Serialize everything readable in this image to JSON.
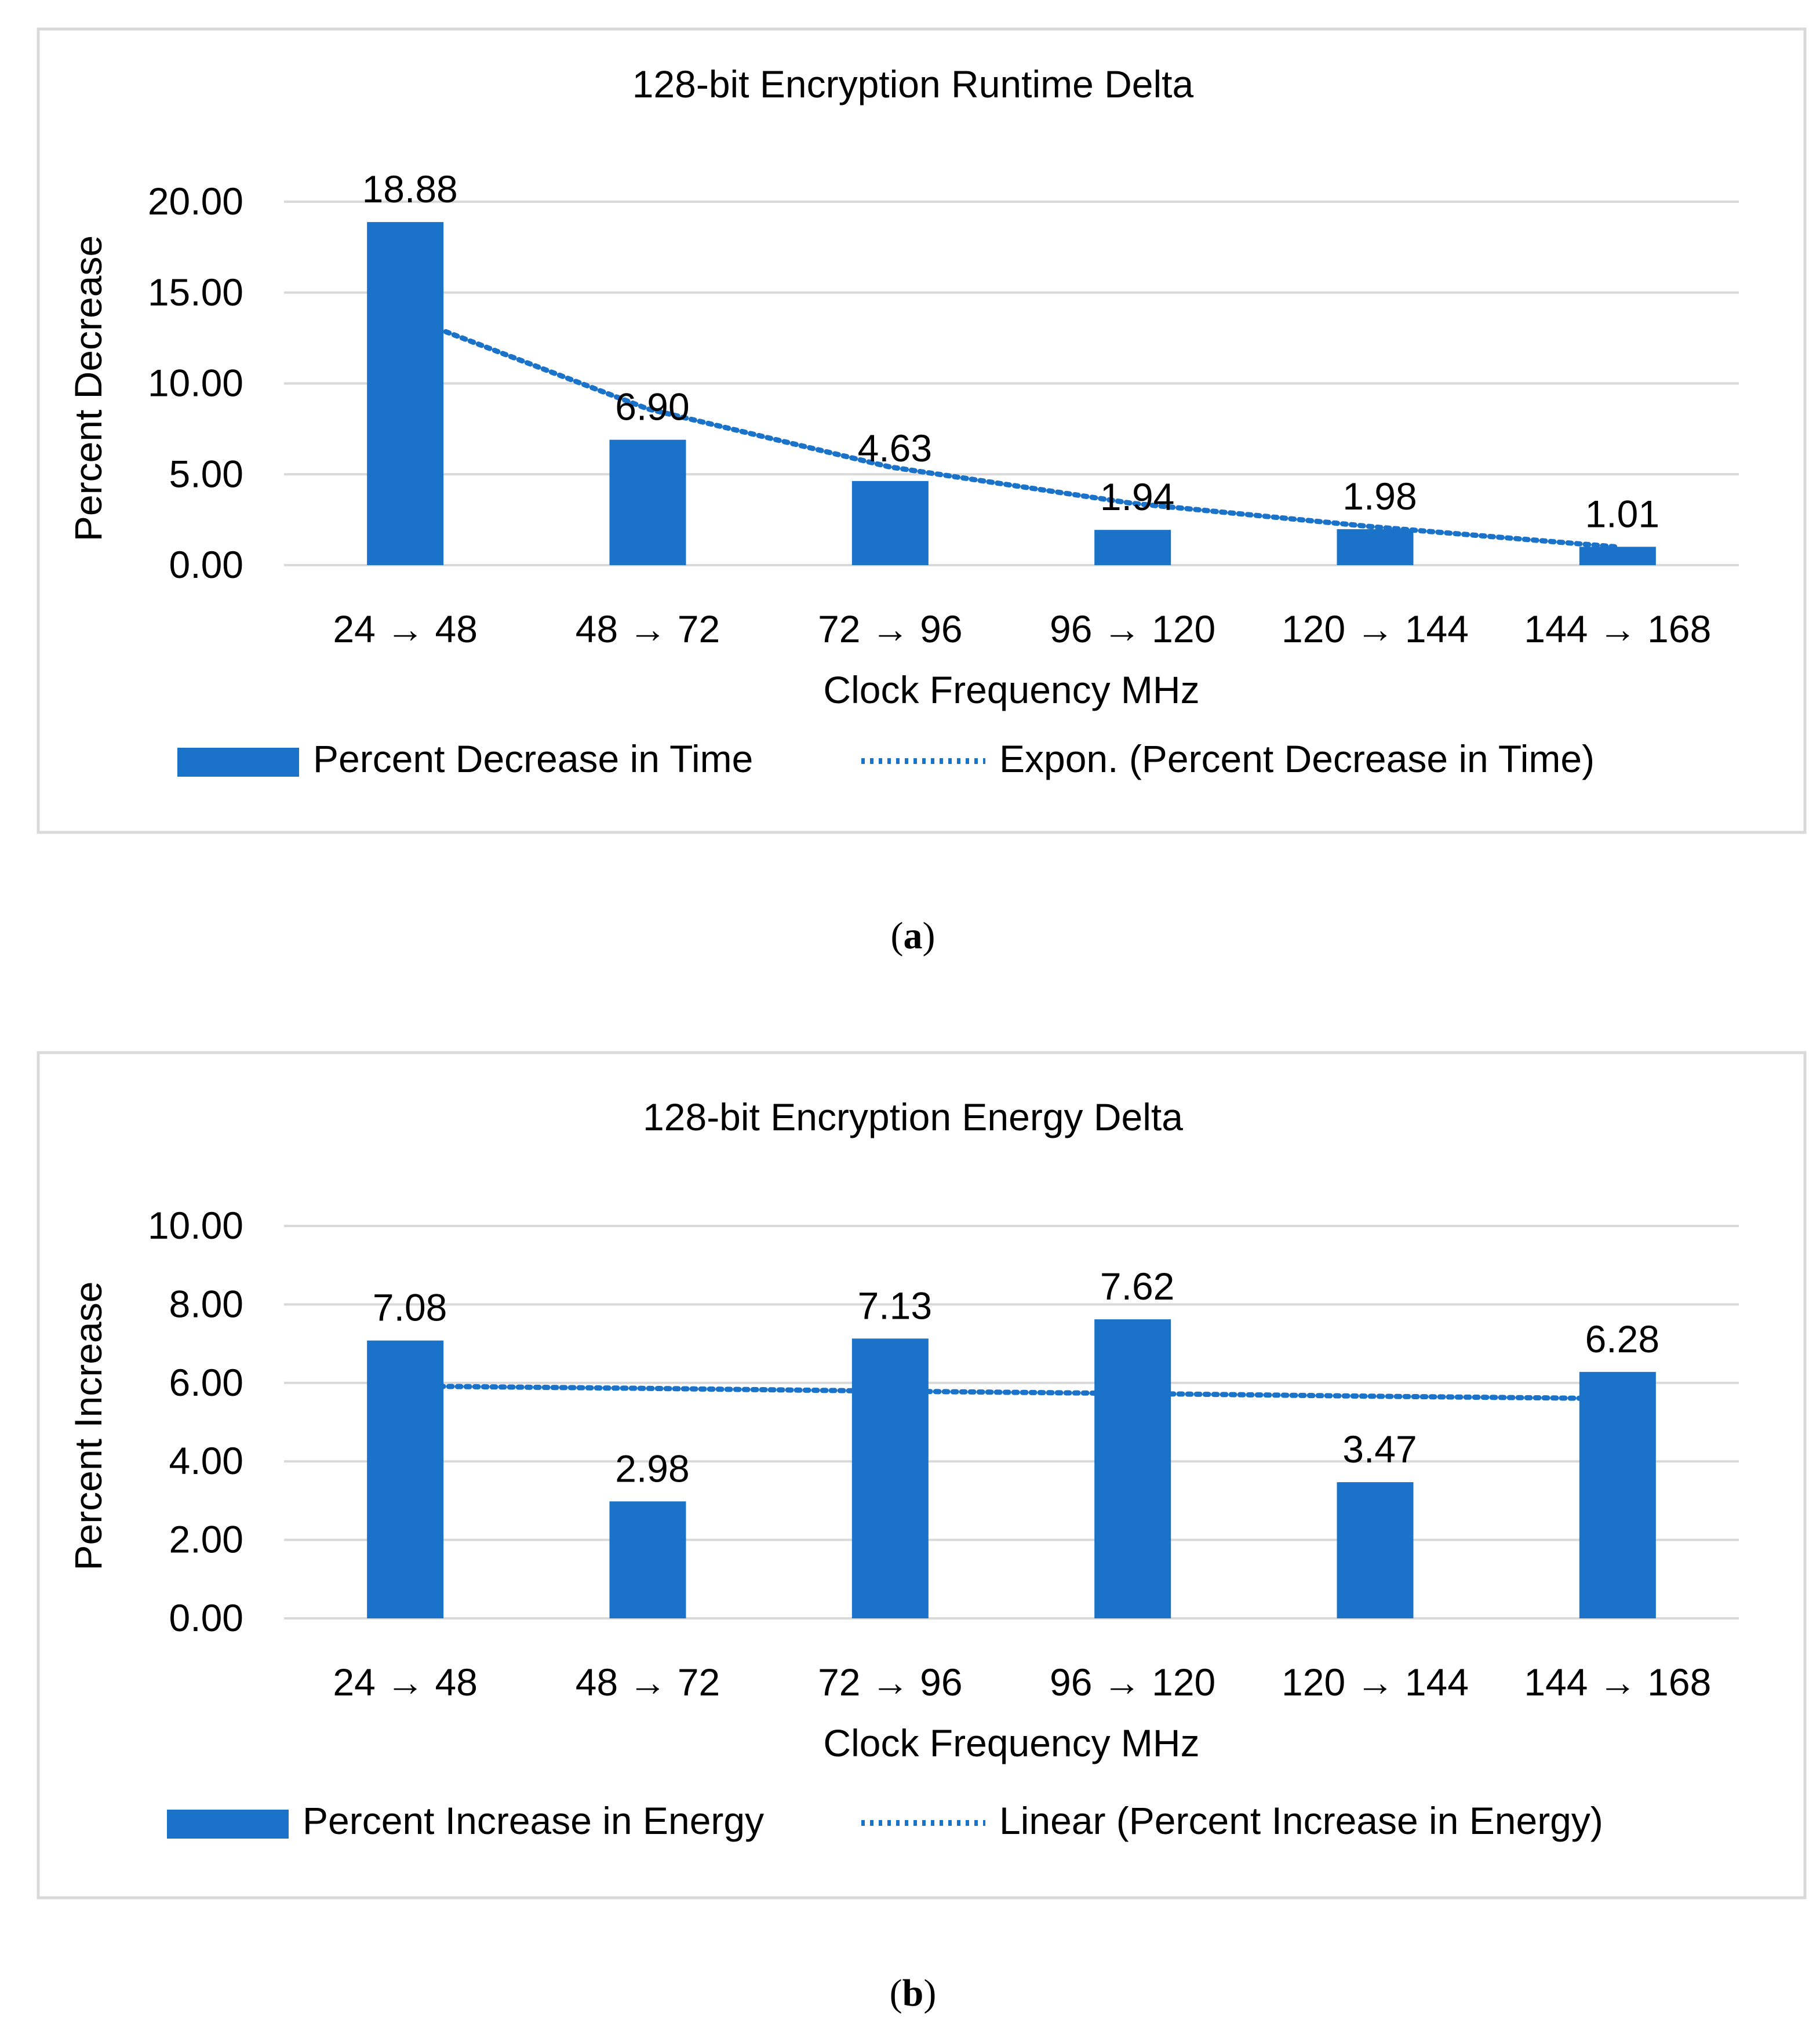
{
  "colors": {
    "bar": "#1a73c9",
    "trend": "#1a73c9",
    "grid": "#d9d9d9",
    "frame": "#d9d9d9",
    "text": "#595959",
    "caption": "#000000"
  },
  "chart_data": [
    {
      "type": "bar",
      "panel": "a",
      "caption_letter": "a",
      "title": "128-bit Encryption Runtime Delta",
      "xlabel": "Clock Frequency MHz",
      "ylabel": "Percent Decrease",
      "categories": [
        "24 → 48",
        "48 → 72",
        "72 → 96",
        "96 → 120",
        "120 → 144",
        "144 → 168"
      ],
      "values": [
        18.88,
        6.9,
        4.63,
        1.94,
        1.98,
        1.01
      ],
      "value_labels": [
        "18.88",
        "6.90",
        "4.63",
        "1.94",
        "1.98",
        "1.01"
      ],
      "ylim": [
        0,
        20
      ],
      "yticks": [
        "0.00",
        "5.00",
        "10.00",
        "15.00",
        "20.00"
      ],
      "ytick_values": [
        0,
        5,
        10,
        15,
        20
      ],
      "grid": true,
      "legend_position": "bottom",
      "legend": {
        "series": "Percent Decrease in Time",
        "trend": "Expon. (Percent Decrease in Time)"
      },
      "trendline": {
        "kind": "exponential",
        "points": [
          13.7,
          8.6,
          5.4,
          3.4,
          2.1,
          1.0
        ]
      }
    },
    {
      "type": "bar",
      "panel": "b",
      "caption_letter": "b",
      "title": "128-bit Encryption Energy Delta",
      "xlabel": "Clock Frequency MHz",
      "ylabel": "Percent Increase",
      "categories": [
        "24 → 48",
        "48 → 72",
        "72 → 96",
        "96 → 120",
        "120 → 144",
        "144 → 168"
      ],
      "values": [
        7.08,
        2.98,
        7.13,
        7.62,
        3.47,
        6.28
      ],
      "value_labels": [
        "7.08",
        "2.98",
        "7.13",
        "7.62",
        "3.47",
        "6.28"
      ],
      "ylim": [
        0,
        10
      ],
      "yticks": [
        "0.00",
        "2.00",
        "4.00",
        "6.00",
        "8.00",
        "10.00"
      ],
      "ytick_values": [
        0,
        2,
        4,
        6,
        8,
        10
      ],
      "grid": true,
      "legend_position": "bottom",
      "legend": {
        "series": "Percent Increase in Energy",
        "trend": "Linear (Percent Increase in Energy)"
      },
      "trendline": {
        "kind": "linear",
        "points": [
          5.92,
          5.86,
          5.79,
          5.73,
          5.66,
          5.6
        ]
      }
    }
  ]
}
